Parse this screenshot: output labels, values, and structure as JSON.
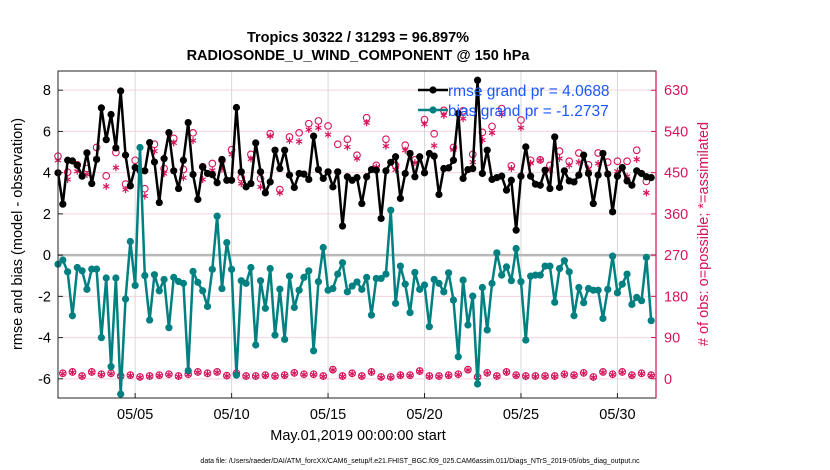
{
  "chart_data": {
    "type": "line",
    "title": "Tropics 30322 / 31293 = 96.897%",
    "subtitle": "RADIOSONDE_U_WIND_COMPONENT @ 150 hPa",
    "xlabel": "May.01,2019 00:00:00 start",
    "ylabel": "rmse and bias (model - observation)",
    "ylabel_right": "# of obs: o=possible; *=assimilated",
    "footer": "data file: /Users/raeder/DAI/ATM_forcXX/CAM6_setup/f.e21.FHIST_BGC.f09_025.CAM6assim.011/Diags_NTrS_2019-05/obs_diag_output.nc",
    "x_start_day": 1,
    "x_step_days": 0.25,
    "xlim": [
      1,
      32
    ],
    "ylim": [
      -6.93,
      8.93
    ],
    "ylim_right": [
      -42,
      672
    ],
    "x_ticks": [
      {
        "day": 5,
        "label": "05/05"
      },
      {
        "day": 10,
        "label": "05/10"
      },
      {
        "day": 15,
        "label": "05/15"
      },
      {
        "day": 20,
        "label": "05/20"
      },
      {
        "day": 25,
        "label": "05/25"
      },
      {
        "day": 30,
        "label": "05/30"
      }
    ],
    "y_ticks": [
      "-6",
      "-4",
      "-2",
      "0",
      "2",
      "4",
      "6",
      "8"
    ],
    "y_ticks_right": [
      "0",
      "90",
      "180",
      "270",
      "360",
      "450",
      "540",
      "630"
    ],
    "grid": true,
    "legend_position": "top-right",
    "colors": {
      "rmse": "#000000",
      "bias": "#008080",
      "obs": "#d6145b",
      "legend_text": "#1a56ff",
      "zero_line": "#b8b8b8",
      "hgrid": "#f4d3df",
      "vgrid": "#d8d8d8"
    },
    "series": [
      {
        "name": "rmse",
        "legend": "rmse grand pr = 4.0688",
        "values": [
          3.99,
          2.47,
          4.6,
          4.57,
          4.36,
          3.83,
          4.96,
          3.47,
          4.64,
          7.14,
          5.6,
          6.82,
          5.2,
          7.96,
          4.85,
          3.36,
          4.25,
          4.1,
          4.09,
          5.46,
          4.52,
          2.55,
          4.68,
          5.94,
          4.09,
          3.23,
          4.6,
          6.43,
          3.91,
          2.7,
          4.28,
          3.96,
          3.9,
          3.51,
          4.64,
          3.63,
          3.63,
          7.16,
          4.04,
          3.31,
          3.47,
          5.44,
          4.04,
          3.02,
          3.55,
          5.09,
          4.2,
          5.09,
          3.88,
          3.28,
          3.96,
          3.93,
          3.67,
          5.77,
          4.15,
          3.72,
          4.04,
          3.31,
          4.04,
          1.41,
          3.8,
          3.63,
          3.76,
          2.5,
          3.8,
          4.15,
          4.12,
          1.78,
          4.09,
          4.5,
          4.77,
          2.75,
          3.96,
          4.93,
          3.8,
          4.77,
          3.99,
          4.93,
          4.8,
          2.94,
          4.2,
          4.23,
          4.6,
          6.87,
          3.72,
          4.15,
          4.2,
          8.48,
          3.96,
          5.09,
          3.67,
          3.76,
          3.83,
          3.15,
          3.63,
          1.21,
          3.83,
          5.25,
          3.83,
          3.44,
          3.39,
          4.12,
          3.23,
          5.73,
          3.28,
          4.09,
          3.6,
          3.55,
          3.88,
          4.85,
          3.96,
          2.5,
          3.88,
          4.93,
          3.93,
          2.1,
          3.83,
          4.25,
          3.6,
          3.39,
          4.09,
          3.96,
          3.8,
          3.76
        ]
      },
      {
        "name": "bias",
        "legend": "bias grand pr = -1.2737",
        "values": [
          -0.44,
          -0.24,
          -0.81,
          -2.94,
          -0.6,
          -0.76,
          -1.66,
          -0.68,
          -0.68,
          -4.0,
          -1.11,
          -5.41,
          -1.11,
          -6.74,
          -2.13,
          0.66,
          -1.47,
          5.22,
          -0.99,
          -3.15,
          -0.95,
          -1.73,
          -1.18,
          -3.52,
          -1.08,
          -1.28,
          -1.37,
          -5.6,
          -0.79,
          -1.32,
          -1.73,
          -2.49,
          -0.69,
          1.89,
          -1.62,
          0.61,
          -0.69,
          -5.82,
          -1.24,
          -1.37,
          -0.6,
          -4.36,
          -1.24,
          -2.58,
          -0.65,
          -3.88,
          -1.65,
          -4.09,
          -1.02,
          -2.54,
          -1.7,
          -1.08,
          -0.76,
          -4.64,
          -1.29,
          0.37,
          -1.7,
          -1.62,
          -0.92,
          -0.37,
          -1.78,
          -1.5,
          -1.3,
          -1.66,
          -1.08,
          -2.91,
          -1.13,
          -1.13,
          -0.92,
          2.18,
          -2.34,
          -0.53,
          -1.41,
          -2.79,
          -0.84,
          -1.66,
          -1.45,
          -3.47,
          -1.18,
          -1.37,
          -1.78,
          -0.86,
          -2.18,
          -4.93,
          -1.21,
          -3.39,
          -1.99,
          -6.25,
          -1.57,
          -3.63,
          -1.37,
          0.11,
          -0.97,
          -0.57,
          -1.24,
          0.32,
          -1.29,
          -4.12,
          -1.02,
          -0.97,
          -0.97,
          -0.53,
          -0.53,
          -2.29,
          -0.65,
          -0.27,
          -0.81,
          -2.94,
          -1.57,
          -2.31,
          -1.62,
          -1.7,
          -1.7,
          -3.07,
          -1.66,
          -0.05,
          -1.83,
          -1.41,
          -0.92,
          -2.39,
          -2.05,
          -2.21,
          -0.11,
          -3.18
        ]
      },
      {
        "name": "obs_possible",
        "axis": "right",
        "values": [
          486,
          12,
          451,
          15,
          467,
          6,
          459,
          15,
          505,
          10,
          443,
          12,
          494,
          6,
          425,
          8,
          477,
          4,
          415,
          6,
          512,
          8,
          459,
          10,
          525,
          6,
          457,
          10,
          537,
          15,
          463,
          12,
          470,
          15,
          477,
          7,
          500,
          12,
          439,
          6,
          490,
          6,
          437,
          8,
          535,
          6,
          413,
          8,
          528,
          13,
          537,
          10,
          557,
          10,
          563,
          6,
          552,
          20,
          512,
          6,
          523,
          12,
          488,
          6,
          570,
          15,
          466,
          4,
          523,
          4,
          466,
          8,
          510,
          8,
          478,
          17,
          566,
          6,
          535,
          6,
          586,
          8,
          505,
          10,
          585,
          20,
          490,
          4,
          538,
          13,
          551,
          6,
          590,
          15,
          465,
          8,
          565,
          6,
          477,
          6,
          478,
          6,
          466,
          6,
          497,
          10,
          475,
          8,
          493,
          13,
          467,
          4,
          493,
          15,
          473,
          10,
          475,
          15,
          475,
          8,
          499,
          12,
          431,
          8
        ]
      },
      {
        "name": "obs_assimilated",
        "axis": "right",
        "values": [
          477,
          11,
          435,
          14,
          453,
          5,
          446,
          14,
          481,
          9,
          420,
          11,
          461,
          5,
          413,
          7,
          461,
          3,
          399,
          5,
          497,
          7,
          448,
          9,
          515,
          5,
          439,
          9,
          520,
          14,
          435,
          11,
          455,
          14,
          458,
          6,
          490,
          11,
          426,
          5,
          480,
          5,
          419,
          7,
          530,
          5,
          406,
          7,
          520,
          12,
          518,
          9,
          544,
          9,
          548,
          5,
          533,
          19,
          451,
          5,
          506,
          11,
          481,
          5,
          559,
          14,
          462,
          3,
          508,
          3,
          456,
          7,
          499,
          7,
          472,
          16,
          556,
          5,
          509,
          5,
          575,
          7,
          500,
          9,
          568,
          19,
          473,
          3,
          521,
          12,
          537,
          5,
          577,
          14,
          459,
          7,
          548,
          5,
          471,
          5,
          477,
          5,
          456,
          5,
          481,
          9,
          466,
          7,
          473,
          12,
          458,
          3,
          470,
          14,
          448,
          9,
          453,
          14,
          442,
          7,
          479,
          11,
          406,
          7
        ]
      }
    ]
  }
}
